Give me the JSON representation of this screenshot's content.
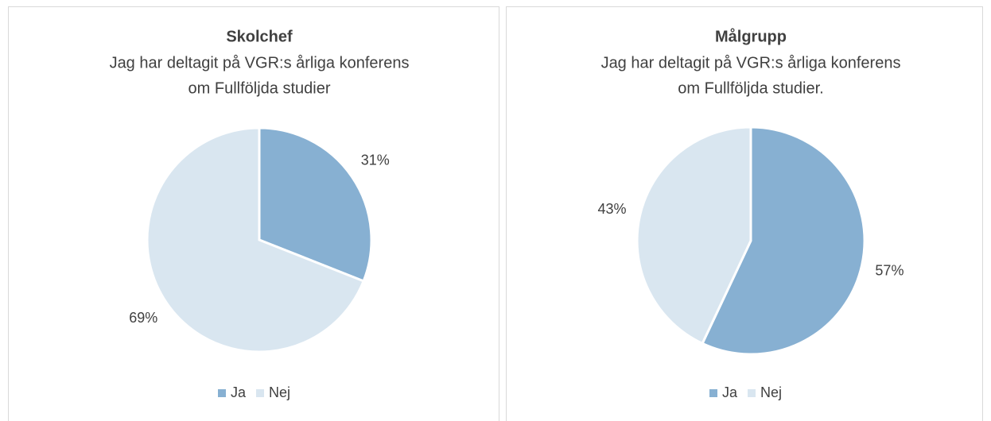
{
  "chart_data": [
    {
      "type": "pie",
      "title": "Skolchef",
      "subtitle": [
        "Jag har deltagit på VGR:s årliga konferens",
        "om Fullföljda studier"
      ],
      "categories": [
        "Ja",
        "Nej"
      ],
      "values": [
        31,
        69
      ],
      "value_labels": [
        "31%",
        "69%"
      ],
      "colors": [
        "#87b0d2",
        "#d9e6f0"
      ],
      "legend": "bottom"
    },
    {
      "type": "pie",
      "title": "Målgrupp",
      "subtitle": [
        "Jag har deltagit på VGR:s årliga konferens",
        "om Fullföljda studier."
      ],
      "categories": [
        "Ja",
        "Nej"
      ],
      "values": [
        57,
        43
      ],
      "value_labels": [
        "57%",
        "43%"
      ],
      "colors": [
        "#87b0d2",
        "#d9e6f0"
      ],
      "legend": "bottom"
    }
  ]
}
